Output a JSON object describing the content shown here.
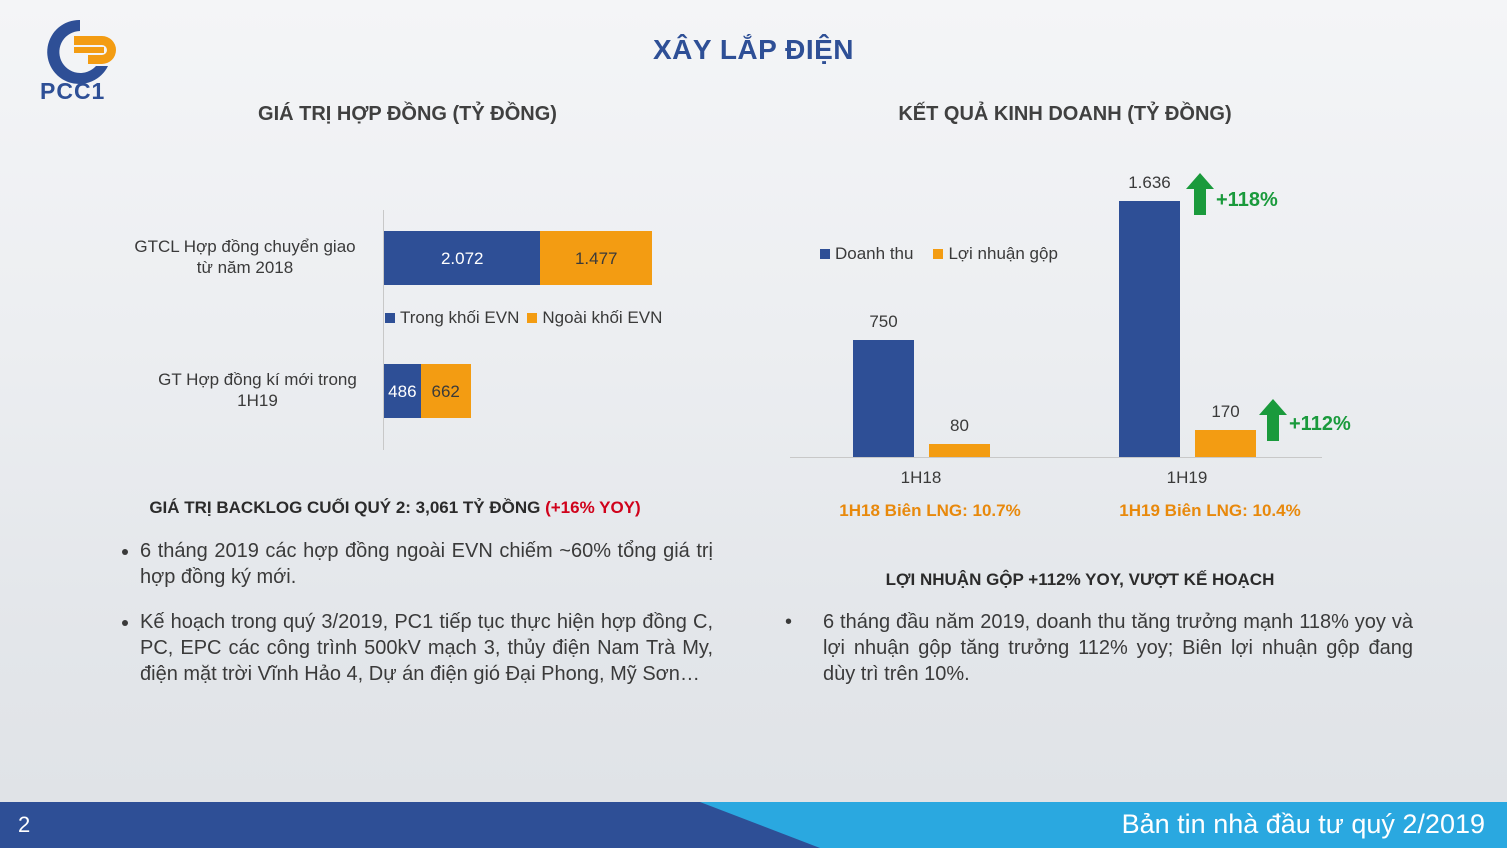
{
  "header": {
    "logo_text": "PCC1",
    "title": "XÂY LẮP ĐIỆN"
  },
  "colors": {
    "blue": "#2e4f96",
    "orange": "#f39c12",
    "green": "#1a9a3c",
    "red": "#d0021b",
    "footer_light": "#2aa8e0"
  },
  "left": {
    "section_title": "GIÁ TRỊ HỢP ĐỒNG (TỶ ĐỒNG)",
    "chart_data": {
      "type": "bar",
      "orientation": "horizontal",
      "stacked": true,
      "categories": [
        "GTCL Hợp đồng chuyển giao từ năm 2018",
        "GT Hợp đồng kí mới trong 1H19"
      ],
      "category_lines": [
        [
          "GTCL Hợp đồng chuyển giao",
          "từ năm 2018"
        ],
        [
          "GT Hợp đồng kí mới trong",
          "1H19"
        ]
      ],
      "series": [
        {
          "name": "Trong khối EVN",
          "values": [
            2072,
            486
          ],
          "labels": [
            "2.072",
            "486"
          ],
          "color": "#2e4f96"
        },
        {
          "name": "Ngoài khối EVN",
          "values": [
            1477,
            662
          ],
          "labels": [
            "1.477",
            "662"
          ],
          "color": "#f39c12"
        }
      ]
    },
    "backlog_prefix": "GIÁ TRỊ BACKLOG CUỐI QUÝ 2: 3,061 TỶ ĐỒNG ",
    "backlog_highlight": "(+16% YOY)",
    "bullets": [
      "6 tháng 2019 các hợp đồng ngoài EVN chiếm ~60% tổng giá trị hợp đồng ký mới.",
      "Kế hoạch trong quý 3/2019, PC1 tiếp tục thực hiện hợp đồng C, PC, EPC các công trình 500kV mạch 3, thủy điện Nam Trà My, điện mặt trời Vĩnh Hảo 4, Dự án điện gió Đại Phong, Mỹ Sơn…"
    ]
  },
  "right": {
    "section_title": "KẾT QUẢ KINH DOANH (TỶ ĐỒNG)",
    "chart_data": {
      "type": "bar",
      "categories": [
        "1H18",
        "1H19"
      ],
      "series": [
        {
          "name": "Doanh thu",
          "values": [
            750,
            1636
          ],
          "labels": [
            "750",
            "1.636"
          ],
          "color": "#2e4f96"
        },
        {
          "name": "Lợi nhuận gộp",
          "values": [
            80,
            170
          ],
          "labels": [
            "80",
            "170"
          ],
          "color": "#f39c12"
        }
      ],
      "annotations": [
        "+118%",
        "+112%"
      ],
      "legend_position": "top-left"
    },
    "margin_notes": [
      "1H18 Biên LNG: 10.7%",
      "1H19 Biên LNG: 10.4%"
    ],
    "subhead": "LỢI NHUẬN GỘP +112% YOY, VƯỢT KẾ HOẠCH",
    "bullets": [
      "6 tháng đầu năm 2019, doanh thu tăng trưởng mạnh 118% yoy và lợi nhuận gộp tăng trưởng 112% yoy; Biên lợi nhuận gộp đang dùy trì trên 10%."
    ]
  },
  "footer": {
    "page_number": "2",
    "text": "Bản tin nhà đầu tư quý 2/2019"
  }
}
